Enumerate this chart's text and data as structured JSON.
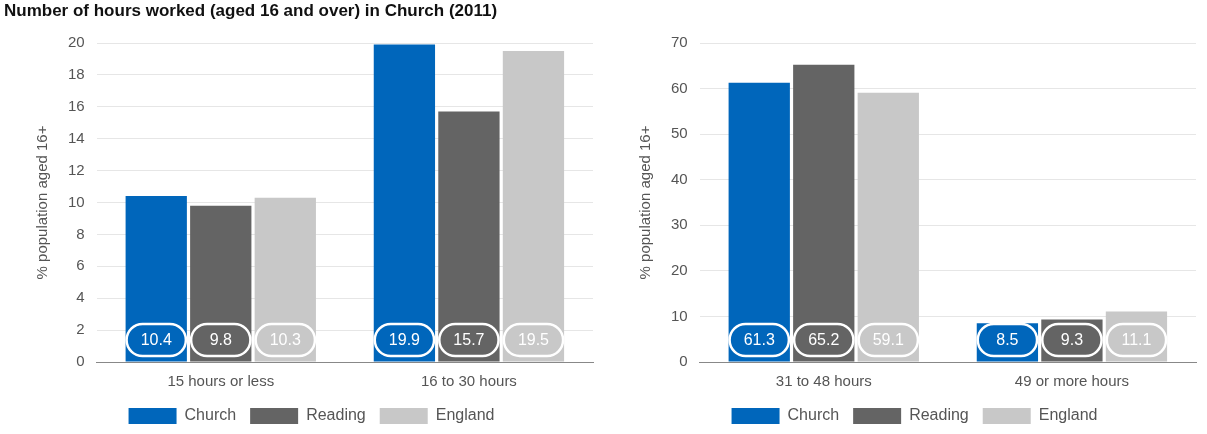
{
  "chart_data": [
    {
      "type": "bar",
      "title": "Number of hours worked (aged 16 and over) in Church (2011)",
      "ylabel": "% population aged 16+",
      "categories": [
        "15 hours or less",
        "16 to 30 hours"
      ],
      "series": [
        {
          "name": "Church",
          "color": "#0066bb",
          "values": [
            10.4,
            19.9
          ]
        },
        {
          "name": "Reading",
          "color": "#646464",
          "values": [
            9.8,
            15.7
          ]
        },
        {
          "name": "England",
          "color": "#c8c8c8",
          "values": [
            10.3,
            19.5
          ]
        }
      ],
      "ylim": [
        0,
        20
      ],
      "yticks": [
        0,
        2,
        4,
        6,
        8,
        10,
        12,
        14,
        16,
        18,
        20
      ],
      "grid": "y",
      "legend": "bottom",
      "data_labels": true
    },
    {
      "type": "bar",
      "ylabel": "% population aged 16+",
      "categories": [
        "31 to 48 hours",
        "49 or more hours"
      ],
      "series": [
        {
          "name": "Church",
          "color": "#0066bb",
          "values": [
            61.3,
            8.5
          ]
        },
        {
          "name": "Reading",
          "color": "#646464",
          "values": [
            65.2,
            9.3
          ]
        },
        {
          "name": "England",
          "color": "#c8c8c8",
          "values": [
            59.1,
            11.1
          ]
        }
      ],
      "ylim": [
        0,
        70
      ],
      "yticks": [
        0,
        10,
        20,
        30,
        40,
        50,
        60,
        70
      ],
      "grid": "y",
      "legend": "bottom",
      "data_labels": true
    }
  ]
}
